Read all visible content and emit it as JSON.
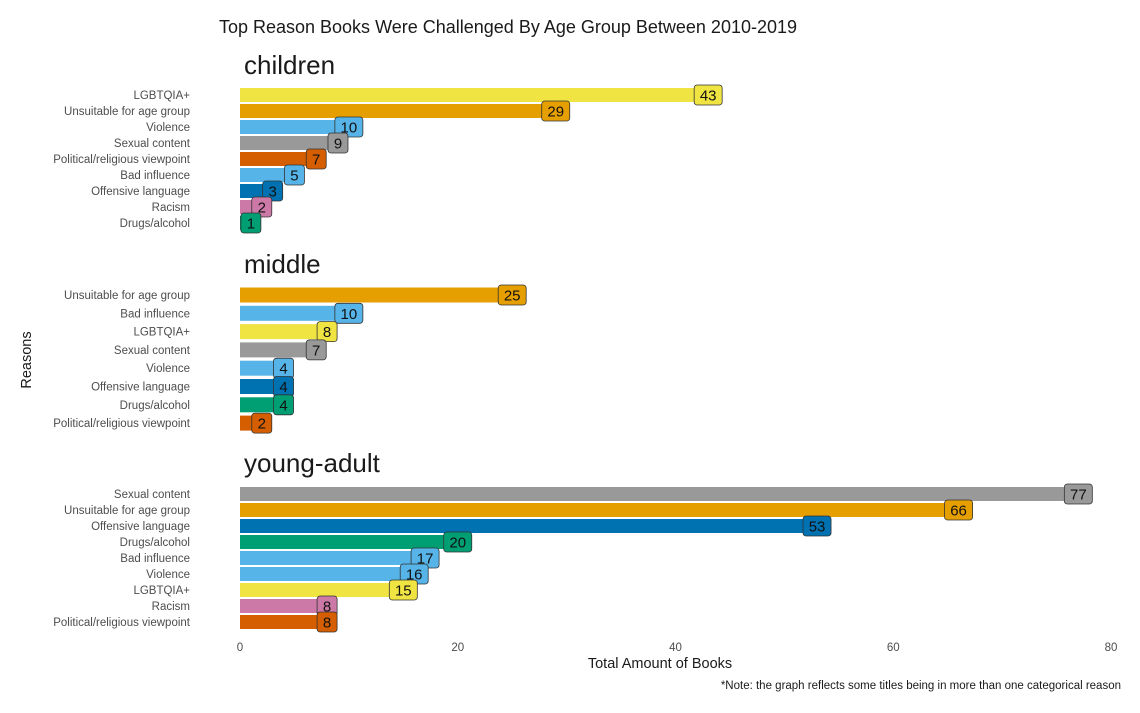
{
  "chart_data": {
    "type": "bar",
    "orientation": "horizontal",
    "title": "Top Reason Books Were Challenged By Age Group Between 2010-2019",
    "xlabel": "Total Amount of Books",
    "ylabel": "Reasons",
    "xlim": [
      0,
      80
    ],
    "xticks": [
      0,
      20,
      40,
      60,
      80
    ],
    "grid": false,
    "note": "*Note: the graph reflects some titles being in more than one categorical reason",
    "colors": {
      "LGBTQIA+": "#F0E442",
      "Unsuitable for age group": "#E69F00",
      "Violence": "#56B4E9",
      "Bad influence": "#56B4E9",
      "Sexual content": "#999999",
      "Political/religious viewpoint": "#D55E00",
      "Offensive language": "#0072B2",
      "Racism": "#CC79A7",
      "Drugs/alcohol": "#009E73"
    },
    "panels": [
      {
        "name": "children",
        "categories": [
          "LGBTQIA+",
          "Unsuitable for age group",
          "Violence",
          "Sexual content",
          "Political/religious viewpoint",
          "Bad influence",
          "Offensive language",
          "Racism",
          "Drugs/alcohol"
        ],
        "values": [
          43,
          29,
          10,
          9,
          7,
          5,
          3,
          2,
          1
        ]
      },
      {
        "name": "middle",
        "categories": [
          "Unsuitable for age group",
          "Bad influence",
          "LGBTQIA+",
          "Sexual content",
          "Violence",
          "Offensive language",
          "Drugs/alcohol",
          "Political/religious viewpoint"
        ],
        "values": [
          25,
          10,
          8,
          7,
          4,
          4,
          4,
          2
        ]
      },
      {
        "name": "young-adult",
        "categories": [
          "Sexual content",
          "Unsuitable for age group",
          "Offensive language",
          "Drugs/alcohol",
          "Bad influence",
          "Violence",
          "LGBTQIA+",
          "Racism",
          "Political/religious viewpoint"
        ],
        "values": [
          77,
          66,
          53,
          20,
          17,
          16,
          15,
          8,
          8
        ]
      }
    ]
  }
}
